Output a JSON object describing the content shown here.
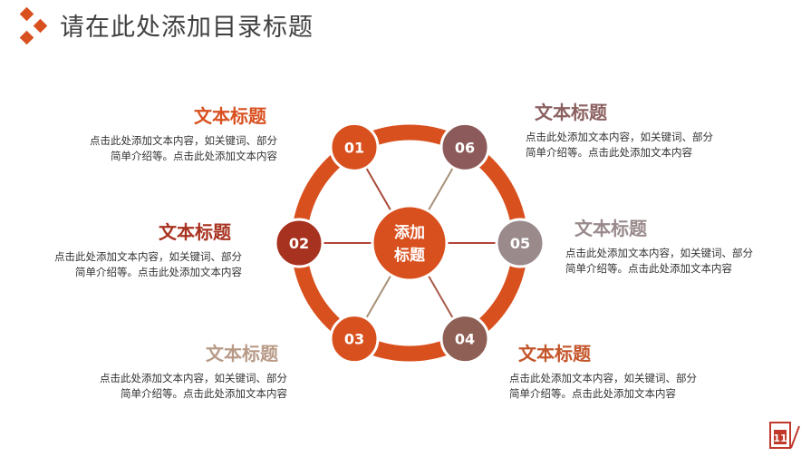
{
  "header": {
    "title": "请在此处添加目录标题",
    "logo_icon": "diamond-cluster-icon"
  },
  "center": {
    "line1": "添加",
    "line2": "标题"
  },
  "nodes": [
    {
      "num": "01",
      "color": "#d9501f",
      "title_color": "#d9501f"
    },
    {
      "num": "02",
      "color": "#a83220",
      "title_color": "#a83220"
    },
    {
      "num": "03",
      "color": "#d9501f",
      "title_color": "#b89a86"
    },
    {
      "num": "04",
      "color": "#8e5f55",
      "title_color": "#c4552a"
    },
    {
      "num": "05",
      "color": "#9a8a8c",
      "title_color": "#9a8a8c"
    },
    {
      "num": "06",
      "color": "#8c5a5a",
      "title_color": "#8c6060"
    }
  ],
  "items": [
    {
      "title": "文本标题",
      "line1": "点击此处添加文本内容，如关键词、部分",
      "line2": "简单介绍等。点击此处添加文本内容"
    },
    {
      "title": "文本标题",
      "line1": "点击此处添加文本内容，如关键词、部分",
      "line2": "简单介绍等。点击此处添加文本内容"
    },
    {
      "title": "文本标题",
      "line1": "点击此处添加文本内容，如关键词、部分",
      "line2": "简单介绍等。点击此处添加文本内容"
    },
    {
      "title": "文本标题",
      "line1": "点击此处添加文本内容，如关键词、部分",
      "line2": "简单介绍等。点击此处添加文本内容"
    },
    {
      "title": "文本标题",
      "line1": "点击此处添加文本内容，如关键词、部分",
      "line2": "简单介绍等。点击此处添加文本内容"
    },
    {
      "title": "文本标题",
      "line1": "点击此处添加文本内容，如关键词、部分",
      "line2": "简单介绍等。点击此处添加文本内容"
    }
  ],
  "colors": {
    "accent": "#d9501f",
    "ring": "#d9501f"
  },
  "footer": {
    "calendar_icon": "calendar-icon",
    "calendar_day": "11"
  }
}
